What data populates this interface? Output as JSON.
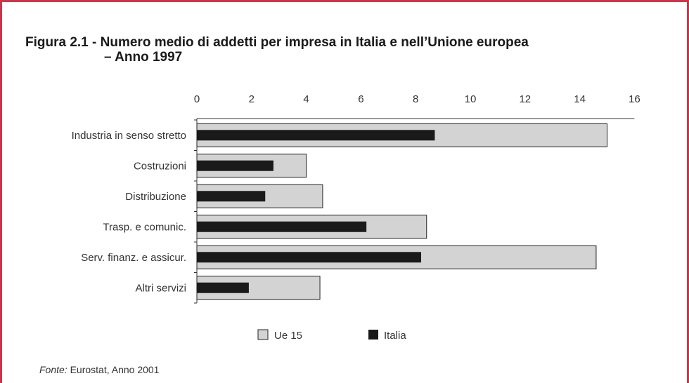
{
  "title_line1": "Figura 2.1 - Numero medio di addetti per impresa in Italia e nell’Unione europea",
  "title_line2": "– Anno 1997",
  "source": {
    "label": "Fonte:",
    "text": "Eurostat, Anno 2001"
  },
  "colors": {
    "frame": "#c8384b",
    "ue15": "#d3d3d3",
    "italia": "#1a1a1a",
    "axis": "#333333"
  },
  "chart_data": {
    "type": "bar",
    "orientation": "horizontal",
    "categories": [
      "Industria in senso stretto",
      "Costruzioni",
      "Distribuzione",
      "Trasp. e comunic.",
      "Serv. finanz. e assicur.",
      "Altri servizi"
    ],
    "series": [
      {
        "name": "Ue 15",
        "values": [
          15.0,
          4.0,
          4.6,
          8.4,
          14.6,
          4.5
        ]
      },
      {
        "name": "Italia",
        "values": [
          8.7,
          2.8,
          2.5,
          6.2,
          8.2,
          1.9
        ]
      }
    ],
    "xlim": [
      0,
      16
    ],
    "xticks": [
      "0",
      "2",
      "4",
      "6",
      "8",
      "10",
      "12",
      "14",
      "16"
    ],
    "legend_position": "bottom",
    "grid": false
  }
}
